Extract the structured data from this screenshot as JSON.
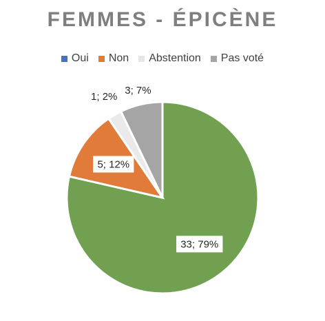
{
  "chart_data": {
    "type": "pie",
    "title": "FEMMES - ÉPICÈNE",
    "legend_position": "top",
    "categories": [
      "Oui",
      "Non",
      "Abstention",
      "Pas voté"
    ],
    "values": [
      33,
      5,
      1,
      3
    ],
    "percent_labels": [
      "79%",
      "12%",
      "2%",
      "7%"
    ],
    "data_labels": [
      "33; 79%",
      "5; 12%",
      "1; 2%",
      "3; 7%"
    ],
    "colors": [
      "#4472c4",
      "#e07b39",
      "#e7e6e6",
      "#a5a5a5"
    ],
    "slice_colors": [
      "#70a050",
      "#e07b39",
      "#eaeaea",
      "#a5a5a5"
    ]
  }
}
